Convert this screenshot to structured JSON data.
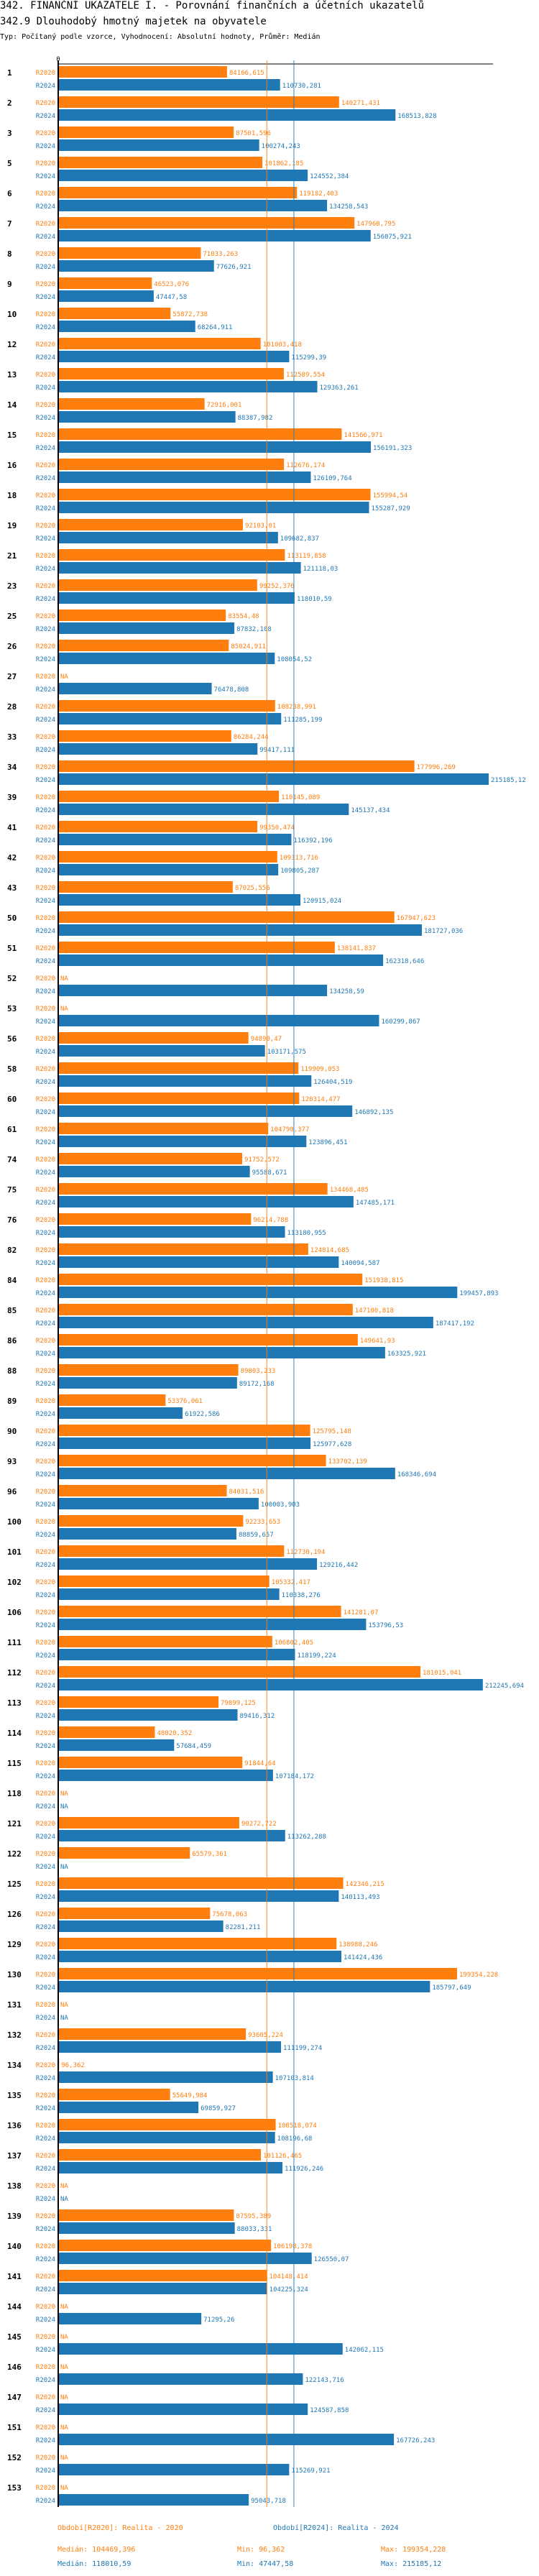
{
  "header": {
    "title": "342. FINANČNÍ UKAZATELE I. - Porovnání finančních a účetních ukazatelů",
    "subtitle": "342.9 Dlouhodobý hmotný majetek na obyvatele",
    "meta": "Typ: Počítaný podle vzorce, Vyhodnocení: Absolutní hodnoty, Průměr: Medián"
  },
  "colors": {
    "r2020": "#ff7f0e",
    "r2024": "#1f77b4",
    "axis": "#000000"
  },
  "chart_data": {
    "type": "bar",
    "orientation": "horizontal",
    "title": "342.9 Dlouhodobý hmotný majetek na obyvatele",
    "xlabel": "",
    "ylabel": "",
    "x_tick_labels": [
      "0"
    ],
    "na_label": "NA",
    "series_names": [
      "R2020",
      "R2024"
    ],
    "medians": {
      "R2020": 104469.396,
      "R2024": 118010.59
    },
    "xlim": [
      0,
      215185.12
    ],
    "categories": [
      "1",
      "2",
      "3",
      "5",
      "6",
      "7",
      "8",
      "9",
      "10",
      "12",
      "13",
      "14",
      "15",
      "16",
      "18",
      "19",
      "21",
      "23",
      "25",
      "26",
      "27",
      "28",
      "33",
      "34",
      "39",
      "41",
      "42",
      "43",
      "50",
      "51",
      "52",
      "53",
      "56",
      "58",
      "60",
      "61",
      "74",
      "75",
      "76",
      "82",
      "84",
      "85",
      "86",
      "88",
      "89",
      "90",
      "93",
      "96",
      "100",
      "101",
      "102",
      "106",
      "111",
      "112",
      "113",
      "114",
      "115",
      "118",
      "121",
      "122",
      "125",
      "126",
      "129",
      "130",
      "131",
      "132",
      "134",
      "135",
      "136",
      "137",
      "138",
      "139",
      "140",
      "141",
      "144",
      "145",
      "146",
      "147",
      "151",
      "152",
      "153"
    ],
    "series": [
      {
        "name": "R2020",
        "values": [
          84166.615,
          140271.431,
          87501.596,
          101862.185,
          119182.403,
          147960.795,
          71033.263,
          46523.076,
          55872.738,
          101003.418,
          112589.554,
          72916.001,
          141566.971,
          112676.174,
          155994.54,
          92103.01,
          113119.858,
          99252.376,
          83554.48,
          85024.911,
          null,
          108238.991,
          86284.244,
          177996.269,
          110145.089,
          99350.474,
          109313.716,
          87025.556,
          167947.623,
          138141.837,
          null,
          null,
          94890.47,
          119909.053,
          120314.477,
          104790.377,
          91752.572,
          134468.485,
          96214.788,
          124814.685,
          151938.815,
          147100.818,
          149641.93,
          89803.233,
          53376.061,
          125795.148,
          133702.139,
          84031.516,
          92233.653,
          112730.194,
          105332.417,
          141281.07,
          106802.405,
          181015.041,
          79899.125,
          48020.352,
          91844.64,
          null,
          90272.722,
          65579.361,
          142346.215,
          75678.063,
          138988.246,
          199354.228,
          null,
          93605.224,
          96.362,
          55649.984,
          108518.074,
          101126.465,
          null,
          87595.389,
          106198.378,
          104148.414,
          null,
          null,
          null,
          null,
          null,
          null,
          null
        ]
      },
      {
        "name": "R2024",
        "values": [
          110730.281,
          168513.828,
          100274.243,
          124552.384,
          134258.543,
          156075.921,
          77626.921,
          47447.58,
          68264.911,
          115299.39,
          129363.261,
          88387.982,
          156191.323,
          126109.764,
          155287.929,
          109682.837,
          121118.03,
          118010.59,
          87832.108,
          108054.52,
          76478.808,
          111285.199,
          99417.111,
          215185.12,
          145137.434,
          116392.196,
          109805.287,
          120915.024,
          181727.036,
          162318.646,
          134258.59,
          160299.867,
          103171.575,
          126404.519,
          146892.135,
          123896.451,
          95588.671,
          147485.171,
          113180.955,
          140094.587,
          199457.893,
          187417.192,
          163325.921,
          89172.168,
          61922.586,
          125977.628,
          168346.694,
          100003.903,
          88859.657,
          129216.442,
          110338.276,
          153796.53,
          118199.224,
          212245.694,
          89416.312,
          57684.459,
          107184.172,
          null,
          113262.288,
          null,
          140113.493,
          82281.211,
          141424.436,
          185797.649,
          null,
          111199.274,
          107103.814,
          69859.927,
          108196.68,
          111926.246,
          null,
          88033.331,
          126550.07,
          104225.324,
          71295.26,
          142062.115,
          122143.716,
          124587.858,
          167726.243,
          115269.921,
          95043.718
        ]
      }
    ]
  },
  "legend": {
    "r2020": "Období[R2020]: Realita - 2020",
    "r2024": "Období[R2024]: Realita - 2024"
  },
  "stats": {
    "r2020": {
      "median": "Medián: 104469,396",
      "min": "Min: 96,362",
      "max": "Max: 199354,228"
    },
    "r2024": {
      "median": "Medián: 118010,59",
      "min": "Min: 47447,58",
      "max": "Max: 215185,12"
    }
  }
}
